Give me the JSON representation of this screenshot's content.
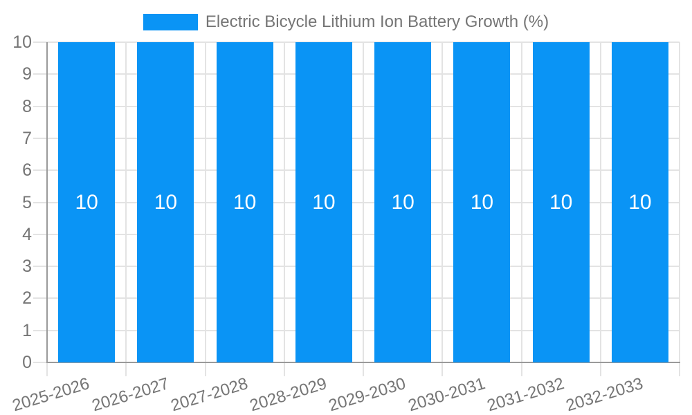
{
  "chart_data": {
    "type": "bar",
    "title": "Electric Bicycle Lithium Ion Battery Growth (%)",
    "legend": {
      "position": "top",
      "label": "Electric Bicycle Lithium Ion Battery Growth (%)"
    },
    "categories": [
      "2025-2026",
      "2026-2027",
      "2027-2028",
      "2028-2029",
      "2029-2030",
      "2030-2031",
      "2031-2032",
      "2032-2033"
    ],
    "series": [
      {
        "name": "Electric Bicycle Lithium Ion Battery Growth (%)",
        "values": [
          10,
          10,
          10,
          10,
          10,
          10,
          10,
          10
        ]
      }
    ],
    "data_labels": [
      "10",
      "10",
      "10",
      "10",
      "10",
      "10",
      "10",
      "10"
    ],
    "xlabel": "",
    "ylabel": "",
    "ylim": [
      0,
      10
    ],
    "y_ticks": [
      0,
      1,
      2,
      3,
      4,
      5,
      6,
      7,
      8,
      9,
      10
    ],
    "grid": true,
    "x_label_rotation_deg": -17,
    "colors": {
      "bar": "#0a94f5",
      "grid": "#e3e3e3",
      "axis": "#9a9a9a",
      "tick_label": "#757575",
      "bar_label": "#ffffff",
      "background": "#ffffff"
    }
  }
}
